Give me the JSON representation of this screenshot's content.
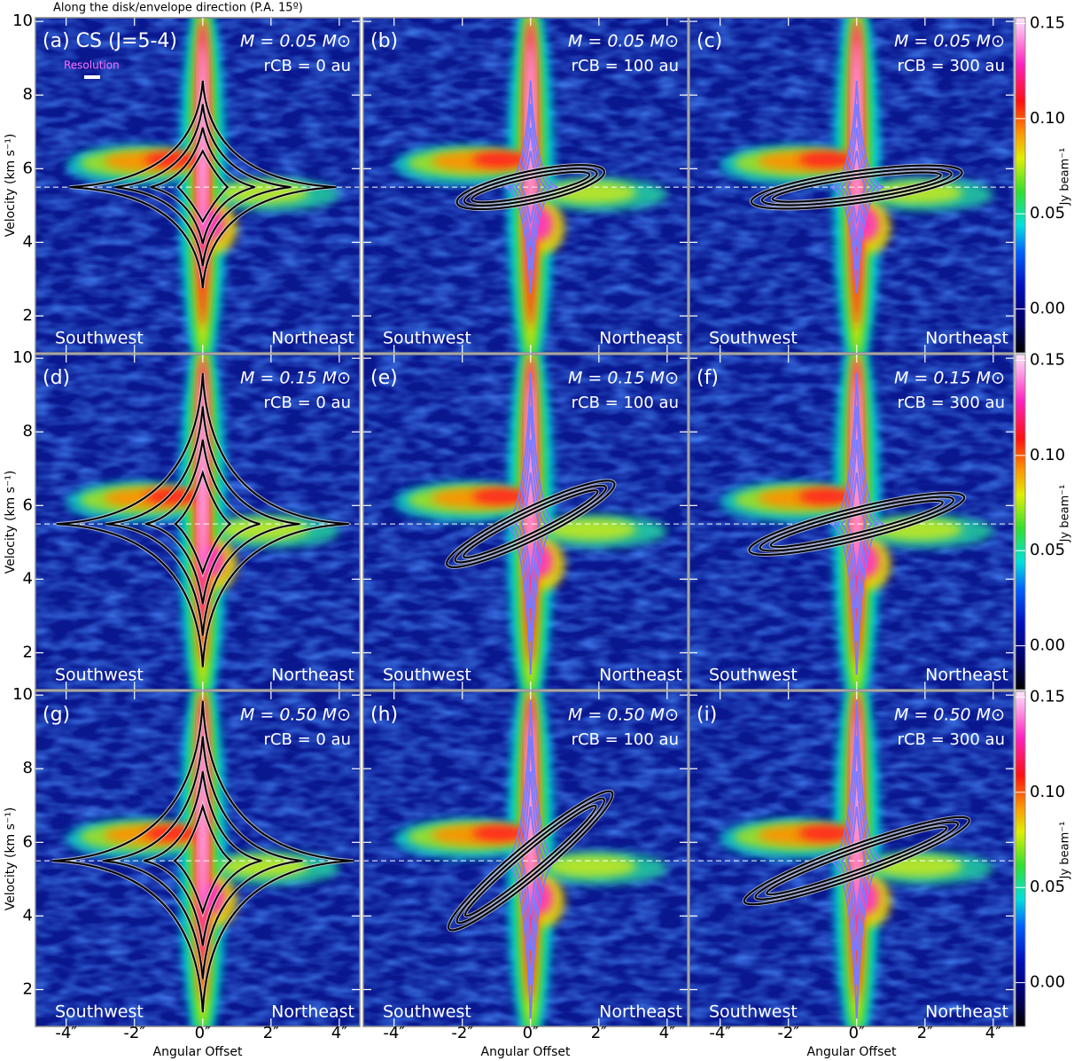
{
  "chart_data": {
    "type": "heatmap",
    "title": "Along the disk/envelope direction (P.A. 15º)",
    "x_label": "Angular Offset",
    "y_label": "Velocity (km s⁻¹)",
    "xlim": [
      -4.9,
      4.6
    ],
    "ylim": [
      1.0,
      10.1
    ],
    "xticks": [
      {
        "value": -4,
        "label": "-4″"
      },
      {
        "value": -2,
        "label": "-2″"
      },
      {
        "value": 0,
        "label": "0″"
      },
      {
        "value": 2,
        "label": "2″"
      },
      {
        "value": 4,
        "label": "4″"
      }
    ],
    "yticks": [
      2,
      4,
      6,
      8,
      10
    ],
    "systemic_velocity": 5.5,
    "colorbar": {
      "label": "Jy beam⁻¹",
      "lim": [
        -0.023,
        0.153
      ],
      "ticks": [
        {
          "value": 0.0,
          "label": "0.00"
        },
        {
          "value": 0.05,
          "label": "0.05"
        },
        {
          "value": 0.1,
          "label": "0.10"
        },
        {
          "value": 0.15,
          "label": "0.15"
        }
      ]
    },
    "southwest": "Southwest",
    "northeast": "Northeast",
    "resolution_label": "Resolution",
    "panels": [
      {
        "label": "(a) CS (J=5-4)",
        "mass": "M = 0.05 M⊙",
        "radius": "rCB = 0 au"
      },
      {
        "label": "(b)",
        "mass": "M = 0.05 M⊙",
        "radius": "rCB = 100 au"
      },
      {
        "label": "(c)",
        "mass": "M = 0.05 M⊙",
        "radius": "rCB = 300 au"
      },
      {
        "label": "(d)",
        "mass": "M = 0.15 M⊙",
        "radius": "rCB = 0 au"
      },
      {
        "label": "(e)",
        "mass": "M = 0.15 M⊙",
        "radius": "rCB = 100 au"
      },
      {
        "label": "(f)",
        "mass": "M = 0.15 M⊙",
        "radius": "rCB = 300 au"
      },
      {
        "label": "(g)",
        "mass": "M = 0.50 M⊙",
        "radius": "rCB = 0 au"
      },
      {
        "label": "(h)",
        "mass": "M = 0.50 M⊙",
        "radius": "rCB = 100 au"
      },
      {
        "label": "(i)",
        "mass": "M = 0.50 M⊙",
        "radius": "rCB = 300 au"
      }
    ]
  }
}
